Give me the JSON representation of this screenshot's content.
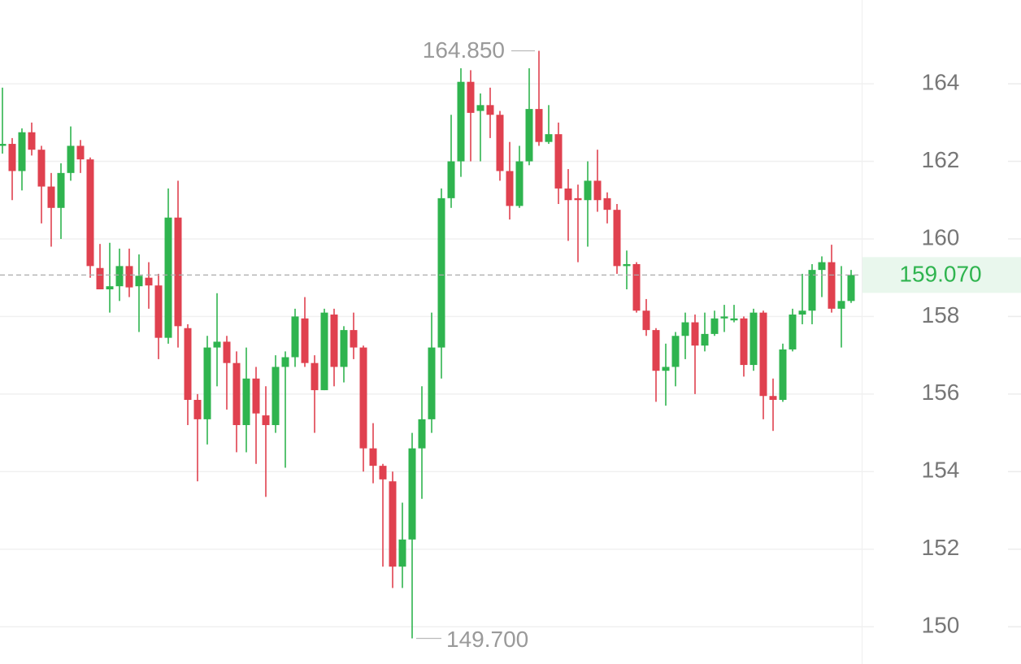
{
  "chart_data": {
    "type": "candlestick",
    "open": [
      162.4,
      162.45,
      161.75,
      162.75,
      162.3,
      161.35,
      160.8,
      161.7,
      162.4,
      162.05,
      159.25,
      158.7,
      158.78,
      159.3,
      158.78,
      159.0,
      158.8,
      157.45,
      160.55,
      157.7,
      155.85,
      155.35,
      157.2,
      157.35,
      156.8,
      155.2,
      156.4,
      155.45,
      155.2,
      156.7,
      156.95,
      157.95,
      156.8,
      156.1,
      158.05,
      156.7,
      157.65,
      157.2,
      154.6,
      154.15,
      153.75,
      151.55,
      152.25,
      154.6,
      155.35,
      157.2,
      161.05,
      162.0,
      164.05,
      163.3,
      163.45,
      163.2,
      161.75,
      160.85,
      162.0,
      163.35,
      162.5,
      162.7,
      161.3,
      161.05,
      161.0,
      161.5,
      161.05,
      160.75,
      159.3,
      159.35,
      158.15,
      157.65,
      156.6,
      156.7,
      157.5,
      157.85,
      157.25,
      157.55,
      157.95,
      157.9,
      157.95,
      156.75,
      158.1,
      155.95,
      155.85,
      157.15,
      158.05,
      158.15,
      159.2,
      159.4,
      158.2,
      158.4
    ],
    "high": [
      163.9,
      162.6,
      162.85,
      163.0,
      162.4,
      161.7,
      161.95,
      162.9,
      162.55,
      162.1,
      159.87,
      159.9,
      159.75,
      159.75,
      159.6,
      159.4,
      159.1,
      161.3,
      161.5,
      157.8,
      156.0,
      157.5,
      158.6,
      157.5,
      157.1,
      157.2,
      156.7,
      156.2,
      157.0,
      157.1,
      158.2,
      158.5,
      157.0,
      158.2,
      158.2,
      157.75,
      158.1,
      157.25,
      155.25,
      154.2,
      154.0,
      153.2,
      155.0,
      156.2,
      158.1,
      161.3,
      163.2,
      164.4,
      164.35,
      163.75,
      163.9,
      163.3,
      162.5,
      162.4,
      164.4,
      164.85,
      163.45,
      163.0,
      161.8,
      161.4,
      162.0,
      162.3,
      161.2,
      160.9,
      159.7,
      159.4,
      158.45,
      157.7,
      157.3,
      157.6,
      158.1,
      158.05,
      158.1,
      158.15,
      158.3,
      158.3,
      158.0,
      158.2,
      158.15,
      156.4,
      157.3,
      158.2,
      159.1,
      159.35,
      159.55,
      159.85,
      159.3,
      159.2
    ],
    "low": [
      162.2,
      161.0,
      161.25,
      162.15,
      160.4,
      159.8,
      160.0,
      161.5,
      161.7,
      159.0,
      158.7,
      158.1,
      158.4,
      158.5,
      157.6,
      158.2,
      156.9,
      157.3,
      157.2,
      155.2,
      153.75,
      154.7,
      156.2,
      155.6,
      154.5,
      154.5,
      154.2,
      153.35,
      155.0,
      154.1,
      156.7,
      156.7,
      155.0,
      156.1,
      156.2,
      156.3,
      156.9,
      154.0,
      153.7,
      151.55,
      151.0,
      151.0,
      149.7,
      153.3,
      155.0,
      156.4,
      160.8,
      161.6,
      162.0,
      162.0,
      162.6,
      161.5,
      160.5,
      160.8,
      161.9,
      162.4,
      162.45,
      160.9,
      159.95,
      159.4,
      159.8,
      160.7,
      160.4,
      159.1,
      158.7,
      158.1,
      157.5,
      155.8,
      155.7,
      156.2,
      156.9,
      156.0,
      157.1,
      157.5,
      157.6,
      157.85,
      156.45,
      156.6,
      155.35,
      155.05,
      155.8,
      157.1,
      157.8,
      157.8,
      158.5,
      158.1,
      157.2,
      158.35
    ],
    "close": [
      162.45,
      161.75,
      162.75,
      162.3,
      161.35,
      160.8,
      161.7,
      162.4,
      162.05,
      159.3,
      158.7,
      158.78,
      159.3,
      158.75,
      159.05,
      158.8,
      157.45,
      160.55,
      157.75,
      155.85,
      155.35,
      157.2,
      157.35,
      156.8,
      155.2,
      156.4,
      155.5,
      155.2,
      156.7,
      156.95,
      158.0,
      156.8,
      156.1,
      158.1,
      156.7,
      157.65,
      157.2,
      154.6,
      154.15,
      153.8,
      151.55,
      152.25,
      154.6,
      155.35,
      157.2,
      161.05,
      162.0,
      164.05,
      163.25,
      163.45,
      163.2,
      161.75,
      160.85,
      162.0,
      163.35,
      162.5,
      162.7,
      161.3,
      161.0,
      161.0,
      161.5,
      161.0,
      160.75,
      159.3,
      159.35,
      158.15,
      157.65,
      156.6,
      156.7,
      157.5,
      157.85,
      157.25,
      157.55,
      157.95,
      158.0,
      157.95,
      156.75,
      158.1,
      155.95,
      155.85,
      157.15,
      158.05,
      158.15,
      159.2,
      159.4,
      158.2,
      158.4,
      159.07
    ],
    "up_color": "#2fb44f",
    "down_color": "#e0414f",
    "ylim": [
      149.04,
      166.16
    ],
    "yticks": [
      150,
      152,
      154,
      156,
      158,
      160,
      162,
      164
    ],
    "grid": true,
    "high_label": {
      "value": 164.85,
      "label": "164.850"
    },
    "low_label": {
      "value": 149.7,
      "label": "149.700"
    },
    "last_price": {
      "value": 159.07,
      "label": "159.070"
    }
  }
}
